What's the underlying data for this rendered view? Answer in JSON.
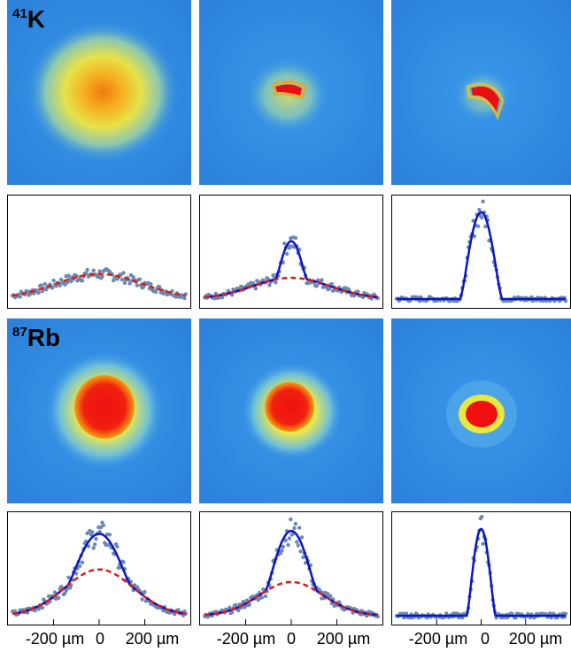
{
  "rows": [
    {
      "species_mass": "41",
      "species_symbol": "K",
      "images": [
        {
          "kind": "thermal"
        },
        {
          "kind": "bimodal"
        },
        {
          "kind": "condensate"
        }
      ]
    },
    {
      "species_mass": "87",
      "species_symbol": "Rb",
      "images": [
        {
          "kind": "thermal"
        },
        {
          "kind": "bimodal"
        },
        {
          "kind": "condensate"
        }
      ]
    }
  ],
  "colors": {
    "background_blue": "#2f8fe8",
    "data_points": "#6a8ab0",
    "fit_solid": "#0a14c8",
    "fit_dashed": "#e01818"
  },
  "x_tick_labels": [
    "-200 µm",
    "0",
    "200 µm"
  ],
  "chart_data": [
    {
      "type": "scatter",
      "row": "41K",
      "column": 1,
      "x": [
        -300,
        -200,
        -100,
        0,
        100,
        200,
        300
      ],
      "y": [
        0.05,
        0.12,
        0.22,
        0.26,
        0.22,
        0.12,
        0.05
      ],
      "series": [
        {
          "name": "",
          "style": "dashed-red thermal fit",
          "peak": 0.26
        }
      ]
    },
    {
      "type": "scatter",
      "row": "41K",
      "column": 2,
      "x": [
        -300,
        -200,
        -100,
        0,
        100,
        200,
        300
      ],
      "y": [
        0.04,
        0.08,
        0.16,
        0.55,
        0.16,
        0.08,
        0.04
      ],
      "series": [
        {
          "name": "",
          "style": "solid-blue bimodal fit",
          "peak": 0.6
        },
        {
          "name": "",
          "style": "dashed-red thermal fit",
          "peak": 0.22
        }
      ]
    },
    {
      "type": "scatter",
      "row": "41K",
      "column": 3,
      "x": [
        -300,
        -200,
        -100,
        0,
        100,
        200,
        300
      ],
      "y": [
        0.03,
        0.04,
        0.06,
        0.9,
        0.06,
        0.04,
        0.03
      ],
      "series": [
        {
          "name": "",
          "style": "solid-blue fit",
          "peak": 0.9
        }
      ]
    },
    {
      "type": "scatter",
      "row": "87Rb",
      "column": 1,
      "x": [
        -300,
        -200,
        -100,
        0,
        100,
        200,
        300
      ],
      "y": [
        0.03,
        0.15,
        0.4,
        0.95,
        0.4,
        0.15,
        0.03
      ],
      "series": [
        {
          "name": "",
          "style": "solid-blue bimodal fit",
          "peak": 0.85
        },
        {
          "name": "",
          "style": "dashed-red thermal fit",
          "peak": 0.48
        }
      ]
    },
    {
      "type": "scatter",
      "row": "87Rb",
      "column": 2,
      "x": [
        -300,
        -200,
        -100,
        0,
        100,
        200,
        300
      ],
      "y": [
        0.02,
        0.1,
        0.28,
        0.95,
        0.28,
        0.1,
        0.02
      ],
      "series": [
        {
          "name": "",
          "style": "solid-blue bimodal fit",
          "peak": 0.88
        },
        {
          "name": "",
          "style": "dashed-red thermal fit",
          "peak": 0.35
        }
      ]
    },
    {
      "type": "scatter",
      "row": "87Rb",
      "column": 3,
      "x": [
        -300,
        -200,
        -100,
        0,
        100,
        200,
        300
      ],
      "y": [
        0.01,
        0.02,
        0.03,
        0.9,
        0.03,
        0.02,
        0.01
      ],
      "series": [
        {
          "name": "",
          "style": "solid-blue fit",
          "peak": 0.9
        }
      ]
    }
  ]
}
